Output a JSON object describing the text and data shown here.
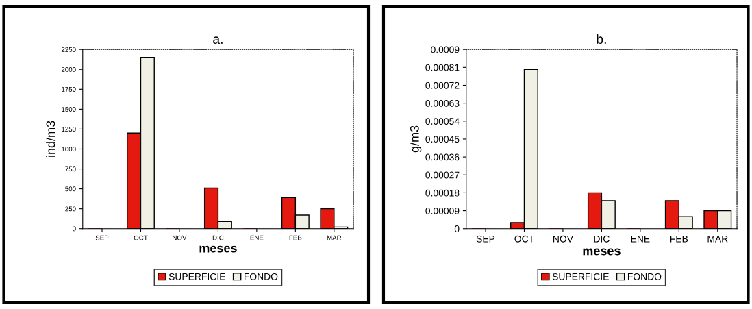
{
  "chart_data": [
    {
      "type": "bar",
      "title": "a.",
      "xlabel": "meses",
      "ylabel": "ind/m3",
      "categories": [
        "SEP",
        "OCT",
        "NOV",
        "DIC",
        "ENE",
        "FEB",
        "MAR"
      ],
      "series": [
        {
          "name": "SUPERFICIE",
          "color": "#e41a10",
          "values": [
            0,
            1200,
            0,
            510,
            0,
            390,
            250
          ]
        },
        {
          "name": "FONDO",
          "color": "#f0f0e4",
          "values": [
            0,
            2150,
            0,
            90,
            0,
            170,
            20
          ]
        }
      ],
      "ylim": [
        0,
        2250
      ],
      "yticks": [
        0,
        250,
        500,
        750,
        1000,
        1250,
        1500,
        1750,
        2000,
        2250
      ],
      "legend": "bottom",
      "grid": false
    },
    {
      "type": "bar",
      "title": "b.",
      "xlabel": "meses",
      "ylabel": "g/m3",
      "categories": [
        "SEP",
        "OCT",
        "NOV",
        "DIC",
        "ENE",
        "FEB",
        "MAR"
      ],
      "series": [
        {
          "name": "SUPERFICIE",
          "color": "#e41a10",
          "values": [
            0,
            3e-05,
            0,
            0.00018,
            0,
            0.00014,
            9e-05
          ]
        },
        {
          "name": "FONDO",
          "color": "#f0f0e4",
          "values": [
            0,
            0.0008,
            0,
            0.00014,
            0,
            6e-05,
            9e-05
          ]
        }
      ],
      "ylim": [
        0,
        0.0009
      ],
      "yticks": [
        0,
        {
          "value": 9e-05,
          "label": "0.00009"
        },
        0.00018,
        0.00027,
        0.00036,
        0.00045,
        0.00054,
        0.00063,
        0.00072,
        0.00081,
        0.0009
      ],
      "legend": "bottom",
      "grid": false
    }
  ]
}
